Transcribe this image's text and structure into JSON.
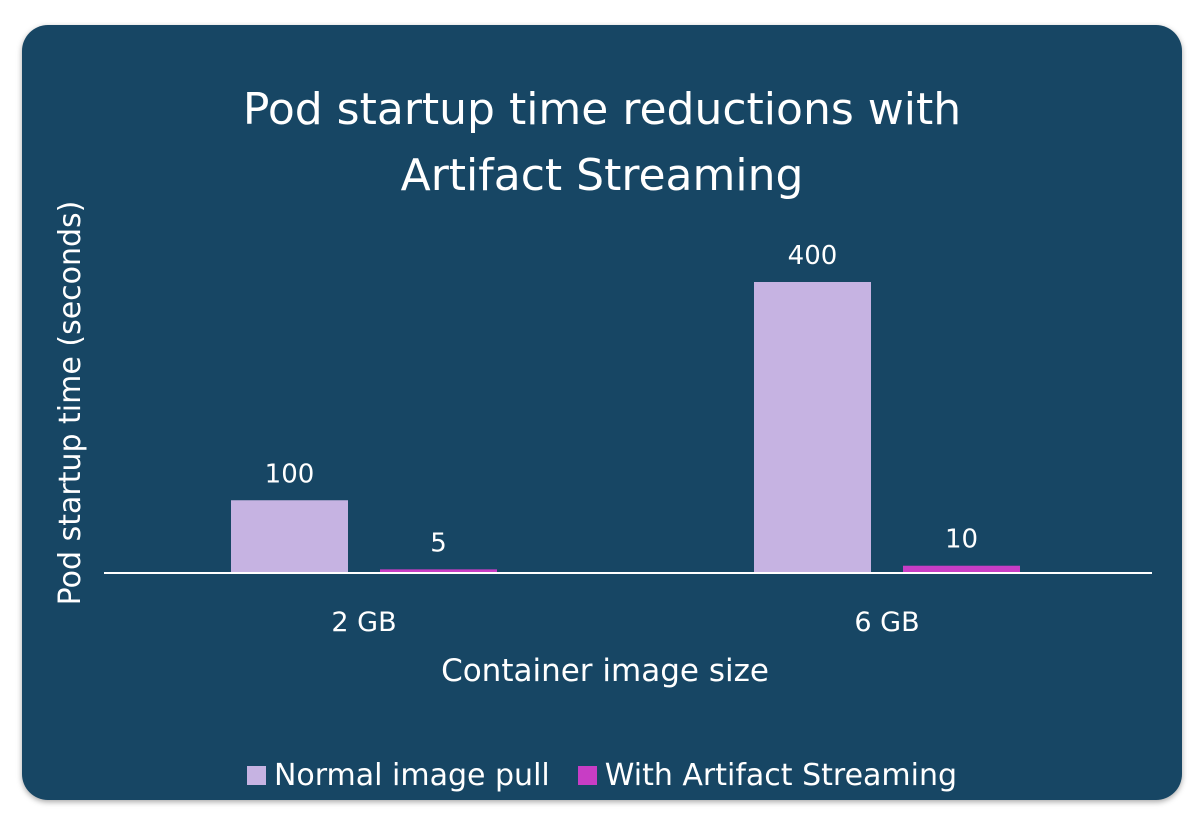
{
  "chart_data": {
    "type": "bar",
    "title_lines": [
      "Pod startup time reductions with",
      "Artifact Streaming"
    ],
    "xlabel": "Container image size",
    "ylabel": "Pod startup time (seconds)",
    "categories": [
      "2 GB",
      "6 GB"
    ],
    "series": [
      {
        "name": "Normal image pull",
        "values": [
          100,
          400
        ],
        "color": "#c6b3e2"
      },
      {
        "name": "With Artifact Streaming",
        "values": [
          5,
          10
        ],
        "color": "#c83dc5"
      }
    ],
    "ylim": [
      0,
      400
    ],
    "grid": false,
    "data_labels": true,
    "legend_position": "bottom",
    "background_color": "#174664",
    "text_color": "#ffffff"
  }
}
